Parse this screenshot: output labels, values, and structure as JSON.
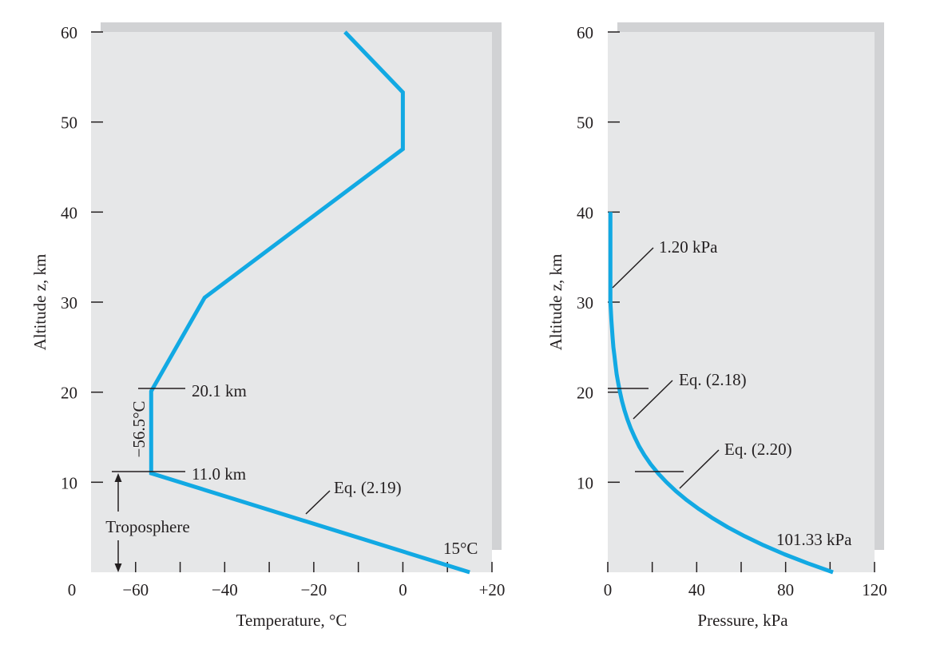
{
  "colors": {
    "curve": "#12a9e3",
    "panel": "#e6e7e8",
    "shadow": "#d1d2d4",
    "ink": "#231f20"
  },
  "chart_data": [
    {
      "type": "line",
      "xlabel": "Temperature, °C",
      "ylabel": "Altitude z, km",
      "xlim": [
        -70,
        20
      ],
      "ylim": [
        0,
        60
      ],
      "x_ticks": [
        -60,
        -40,
        -20,
        0,
        20
      ],
      "x_tick_labels": [
        "−60",
        "−40",
        "−20",
        "0",
        "+20"
      ],
      "x_origin_label": "0",
      "y_ticks": [
        10,
        20,
        30,
        40,
        50,
        60
      ],
      "y_tick_labels": [
        "10",
        "20",
        "30",
        "40",
        "50",
        "60"
      ],
      "grid": false,
      "series": [
        {
          "x": [
            15,
            -56.5,
            -56.5,
            -44.5,
            0,
            0,
            -13
          ],
          "y": [
            0,
            11.0,
            20.1,
            30.5,
            47,
            53.3,
            60
          ]
        }
      ],
      "annotations": {
        "km_20": "20.1 km",
        "km_11": "11.0 km",
        "eq": "Eq. (2.19)",
        "temp_min": "−56.5°C",
        "temp_sea": "15°C",
        "troposphere": "Troposphere"
      }
    },
    {
      "type": "line",
      "xlabel": "Pressure, kPa",
      "ylabel": "Altitude z, km",
      "xlim": [
        0,
        120
      ],
      "ylim": [
        0,
        60
      ],
      "x_ticks": [
        0,
        40,
        80,
        120
      ],
      "x_tick_labels": [
        "0",
        "40",
        "80",
        "120"
      ],
      "y_ticks": [
        10,
        20,
        30,
        40,
        50,
        60
      ],
      "y_tick_labels": [
        "10",
        "20",
        "30",
        "40",
        "50",
        "60"
      ],
      "grid": false,
      "series": [
        {
          "x": [
            101.33,
            89.9,
            79.5,
            70.1,
            61.6,
            54.0,
            47.2,
            41.1,
            35.6,
            30.7,
            26.4,
            22.6,
            19.3,
            16.5,
            14.1,
            12.1,
            10.3,
            8.8,
            7.5,
            6.4,
            5.5,
            4.7,
            4.0,
            3.5,
            3.0,
            2.5,
            2.2,
            1.9,
            1.6,
            1.4,
            1.2,
            1.2
          ],
          "y": [
            0,
            1,
            2,
            3,
            4,
            5,
            6,
            7,
            8,
            9,
            10,
            11,
            12,
            13,
            14,
            15,
            16,
            17,
            18,
            19,
            20,
            21,
            22,
            23,
            24,
            25,
            26,
            27,
            28,
            29,
            30,
            40
          ]
        }
      ],
      "annotations": {
        "kpa_top": "1.20 kPa",
        "eq_a": "Eq. (2.18)",
        "eq_b": "Eq. (2.20)",
        "kpa_sea": "101.33 kPa"
      }
    }
  ]
}
